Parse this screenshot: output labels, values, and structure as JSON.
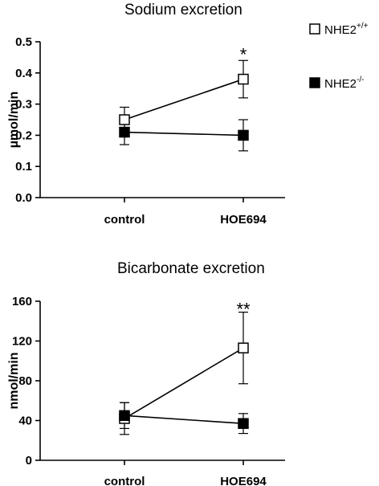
{
  "legend": {
    "wt": {
      "base": "NHE2",
      "sup": "+/+"
    },
    "ko": {
      "base": "NHE2",
      "sup": "-/-"
    }
  },
  "chart_data": [
    {
      "type": "line",
      "title": "Sodium excretion",
      "ylabel": "µmol/min",
      "xlabel": "",
      "categories": [
        "control",
        "HOE694"
      ],
      "ylim": [
        0,
        0.5
      ],
      "yticks": [
        0.0,
        0.1,
        0.2,
        0.3,
        0.4,
        0.5
      ],
      "ytick_labels": [
        "0.0",
        "0.1",
        "0.2",
        "0.3",
        "0.4",
        "0.5"
      ],
      "series": [
        {
          "name": "NHE2+/+",
          "marker": "open-square",
          "values": [
            0.25,
            0.38
          ],
          "errors": [
            0.04,
            0.06
          ]
        },
        {
          "name": "NHE2-/-",
          "marker": "filled-square",
          "values": [
            0.21,
            0.2
          ],
          "errors": [
            0.04,
            0.05
          ]
        }
      ],
      "annotations": [
        {
          "category": "HOE694",
          "text": "*"
        }
      ]
    },
    {
      "type": "line",
      "title": "Bicarbonate excretion",
      "ylabel": "nmol/min",
      "xlabel": "",
      "categories": [
        "control",
        "HOE694"
      ],
      "ylim": [
        0,
        160
      ],
      "yticks": [
        0,
        40,
        80,
        120,
        160
      ],
      "ytick_labels": [
        "0",
        "40",
        "80",
        "120",
        "160"
      ],
      "series": [
        {
          "name": "NHE2+/+",
          "marker": "open-square",
          "values": [
            42,
            113
          ],
          "errors": [
            16,
            36
          ]
        },
        {
          "name": "NHE2-/-",
          "marker": "filled-square",
          "values": [
            45,
            37
          ],
          "errors": [
            13,
            10
          ]
        }
      ],
      "annotations": [
        {
          "category": "HOE694",
          "text": "**"
        }
      ]
    }
  ]
}
